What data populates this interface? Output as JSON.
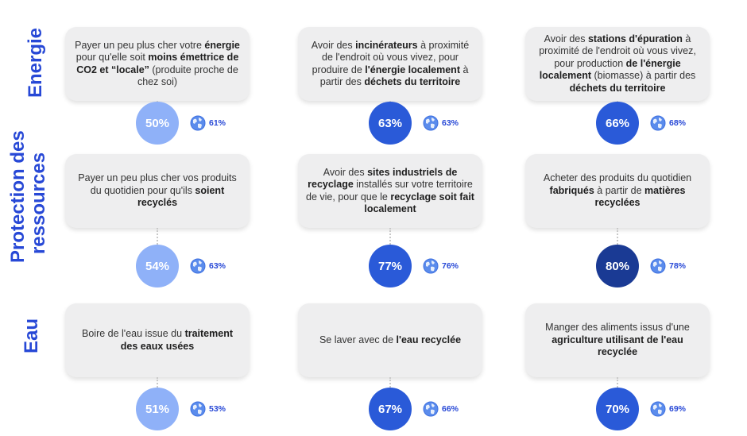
{
  "sections": [
    {
      "label": "Energie"
    },
    {
      "label": "Protection des ressources",
      "line1": "Protection des",
      "line2": "ressources"
    },
    {
      "label": "Eau"
    }
  ],
  "colors": {
    "accent": "#2748d6",
    "circle_light": "#8fb1f8",
    "circle_mid": "#2a5ad8",
    "circle_dark": "#1a3a94",
    "card": "#eeeeef"
  },
  "icons": {
    "globe": "globe-icon"
  },
  "cards": [
    {
      "parts": [
        {
          "t": "Payer un peu plus cher votre "
        },
        {
          "t": "énergie",
          "b": true
        },
        {
          "t": " pour qu'elle soit "
        },
        {
          "t": "moins émettrice de CO2 et “locale”",
          "b": true
        },
        {
          "t": " (produite proche de chez soi)"
        }
      ],
      "value": "50%",
      "world": "61%",
      "tone": "light"
    },
    {
      "parts": [
        {
          "t": "Avoir des "
        },
        {
          "t": "incinérateurs",
          "b": true
        },
        {
          "t": " à proximité de l'endroit où vous vivez, pour produire de "
        },
        {
          "t": "l'énergie localement",
          "b": true
        },
        {
          "t": " à partir des "
        },
        {
          "t": "déchets du territoire",
          "b": true
        }
      ],
      "value": "63%",
      "world": "63%",
      "tone": "mid"
    },
    {
      "parts": [
        {
          "t": "Avoir des "
        },
        {
          "t": "stations d'épuration",
          "b": true
        },
        {
          "t": " à proximité de l'endroit où vous vivez, pour production "
        },
        {
          "t": "de l'énergie localement",
          "b": true
        },
        {
          "t": " (biomasse) à partir des "
        },
        {
          "t": "déchets du territoire",
          "b": true
        }
      ],
      "value": "66%",
      "world": "68%",
      "tone": "mid"
    },
    {
      "parts": [
        {
          "t": "Payer un peu plus cher vos produits du quotidien pour qu'ils "
        },
        {
          "t": "soient recyclés",
          "b": true
        }
      ],
      "value": "54%",
      "world": "63%",
      "tone": "light"
    },
    {
      "parts": [
        {
          "t": "Avoir des "
        },
        {
          "t": "sites industriels de recyclage",
          "b": true
        },
        {
          "t": " installés sur votre territoire de vie, pour que le "
        },
        {
          "t": "recyclage soit fait localement",
          "b": true
        }
      ],
      "value": "77%",
      "world": "76%",
      "tone": "mid"
    },
    {
      "parts": [
        {
          "t": "Acheter des produits du quotidien "
        },
        {
          "t": "fabriqués",
          "b": true
        },
        {
          "t": " à partir de "
        },
        {
          "t": "matières recyclées",
          "b": true
        }
      ],
      "value": "80%",
      "world": "78%",
      "tone": "dark"
    },
    {
      "parts": [
        {
          "t": "Boire de l'eau issue du "
        },
        {
          "t": "traitement des eaux usées",
          "b": true
        }
      ],
      "value": "51%",
      "world": "53%",
      "tone": "light"
    },
    {
      "parts": [
        {
          "t": "Se laver avec de "
        },
        {
          "t": "l'eau recyclée",
          "b": true
        }
      ],
      "value": "67%",
      "world": "66%",
      "tone": "mid"
    },
    {
      "parts": [
        {
          "t": "Manger des aliments issus d'une "
        },
        {
          "t": "agriculture utilisant de l'eau recyclée",
          "b": true
        }
      ],
      "value": "70%",
      "world": "69%",
      "tone": "mid"
    }
  ]
}
